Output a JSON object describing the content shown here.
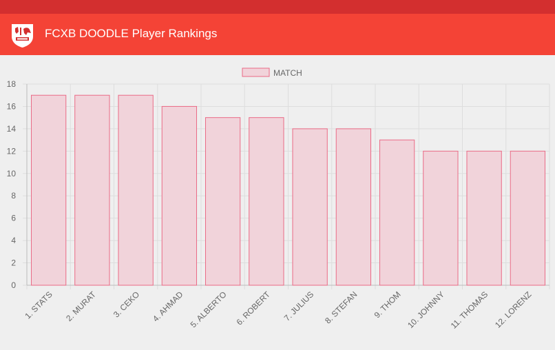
{
  "header": {
    "title": "FCXB DOODLE Player Rankings",
    "logo_icon": "club-crest-icon"
  },
  "colors": {
    "statusbar": "#d32f2f",
    "appbar": "#f44336",
    "bar_fill": "#f1d3da",
    "bar_stroke": "#ea6a86",
    "grid": "#dddddd",
    "text": "#666666"
  },
  "chart_data": {
    "type": "bar",
    "title": "",
    "xlabel": "",
    "ylabel": "",
    "categories": [
      "1. STATS",
      "2. MURAT",
      "3. CEKO",
      "4. AHMAD",
      "5. ALBERTO",
      "6. ROBERT",
      "7. JULIUS",
      "8. STEFAN",
      "9. THOM",
      "10. JOHNNY",
      "11. THOMAS",
      "12. LORENZ"
    ],
    "series": [
      {
        "name": "MATCH",
        "values": [
          17,
          17,
          17,
          16,
          15,
          15,
          14,
          14,
          13,
          12,
          12,
          12
        ]
      }
    ],
    "ylim": [
      0,
      18
    ],
    "yticks": [
      0,
      2,
      4,
      6,
      8,
      10,
      12,
      14,
      16,
      18
    ],
    "grid": true,
    "legend": "top-center"
  }
}
